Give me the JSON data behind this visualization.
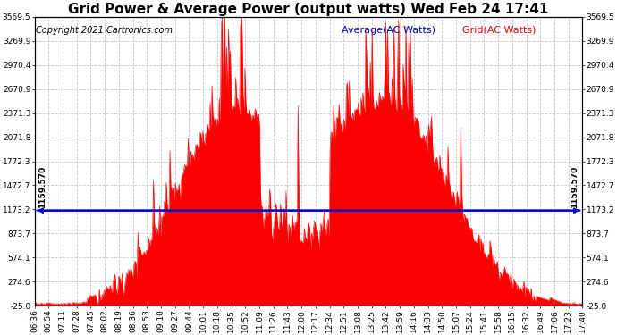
{
  "title": "Grid Power & Average Power (output watts) Wed Feb 24 17:41",
  "copyright": "Copyright 2021 Cartronics.com",
  "legend_avg": "Average(AC Watts)",
  "legend_grid": "Grid(AC Watts)",
  "average_value": 1159.57,
  "average_label": "1159.570",
  "y_min": -25.0,
  "y_max": 3569.5,
  "yticks": [
    -25.0,
    274.6,
    574.1,
    873.7,
    1173.2,
    1472.7,
    1772.3,
    2071.8,
    2371.3,
    2670.9,
    2970.4,
    3269.9,
    3569.5
  ],
  "fill_color": "#ff0000",
  "avg_line_color": "#0000cd",
  "background_color": "#ffffff",
  "grid_color": "#c0c0c0",
  "title_fontsize": 11,
  "copyright_fontsize": 7,
  "legend_fontsize": 8,
  "tick_fontsize": 6.5,
  "xtick_labels": [
    "06:36",
    "06:54",
    "07:11",
    "07:28",
    "07:45",
    "08:02",
    "08:19",
    "08:36",
    "08:53",
    "09:10",
    "09:27",
    "09:44",
    "10:01",
    "10:18",
    "10:35",
    "10:52",
    "11:09",
    "11:26",
    "11:43",
    "12:00",
    "12:17",
    "12:34",
    "12:51",
    "13:08",
    "13:25",
    "13:42",
    "13:59",
    "14:16",
    "14:33",
    "14:50",
    "15:07",
    "15:24",
    "15:41",
    "15:58",
    "16:15",
    "16:32",
    "16:49",
    "17:06",
    "17:23",
    "17:40"
  ]
}
